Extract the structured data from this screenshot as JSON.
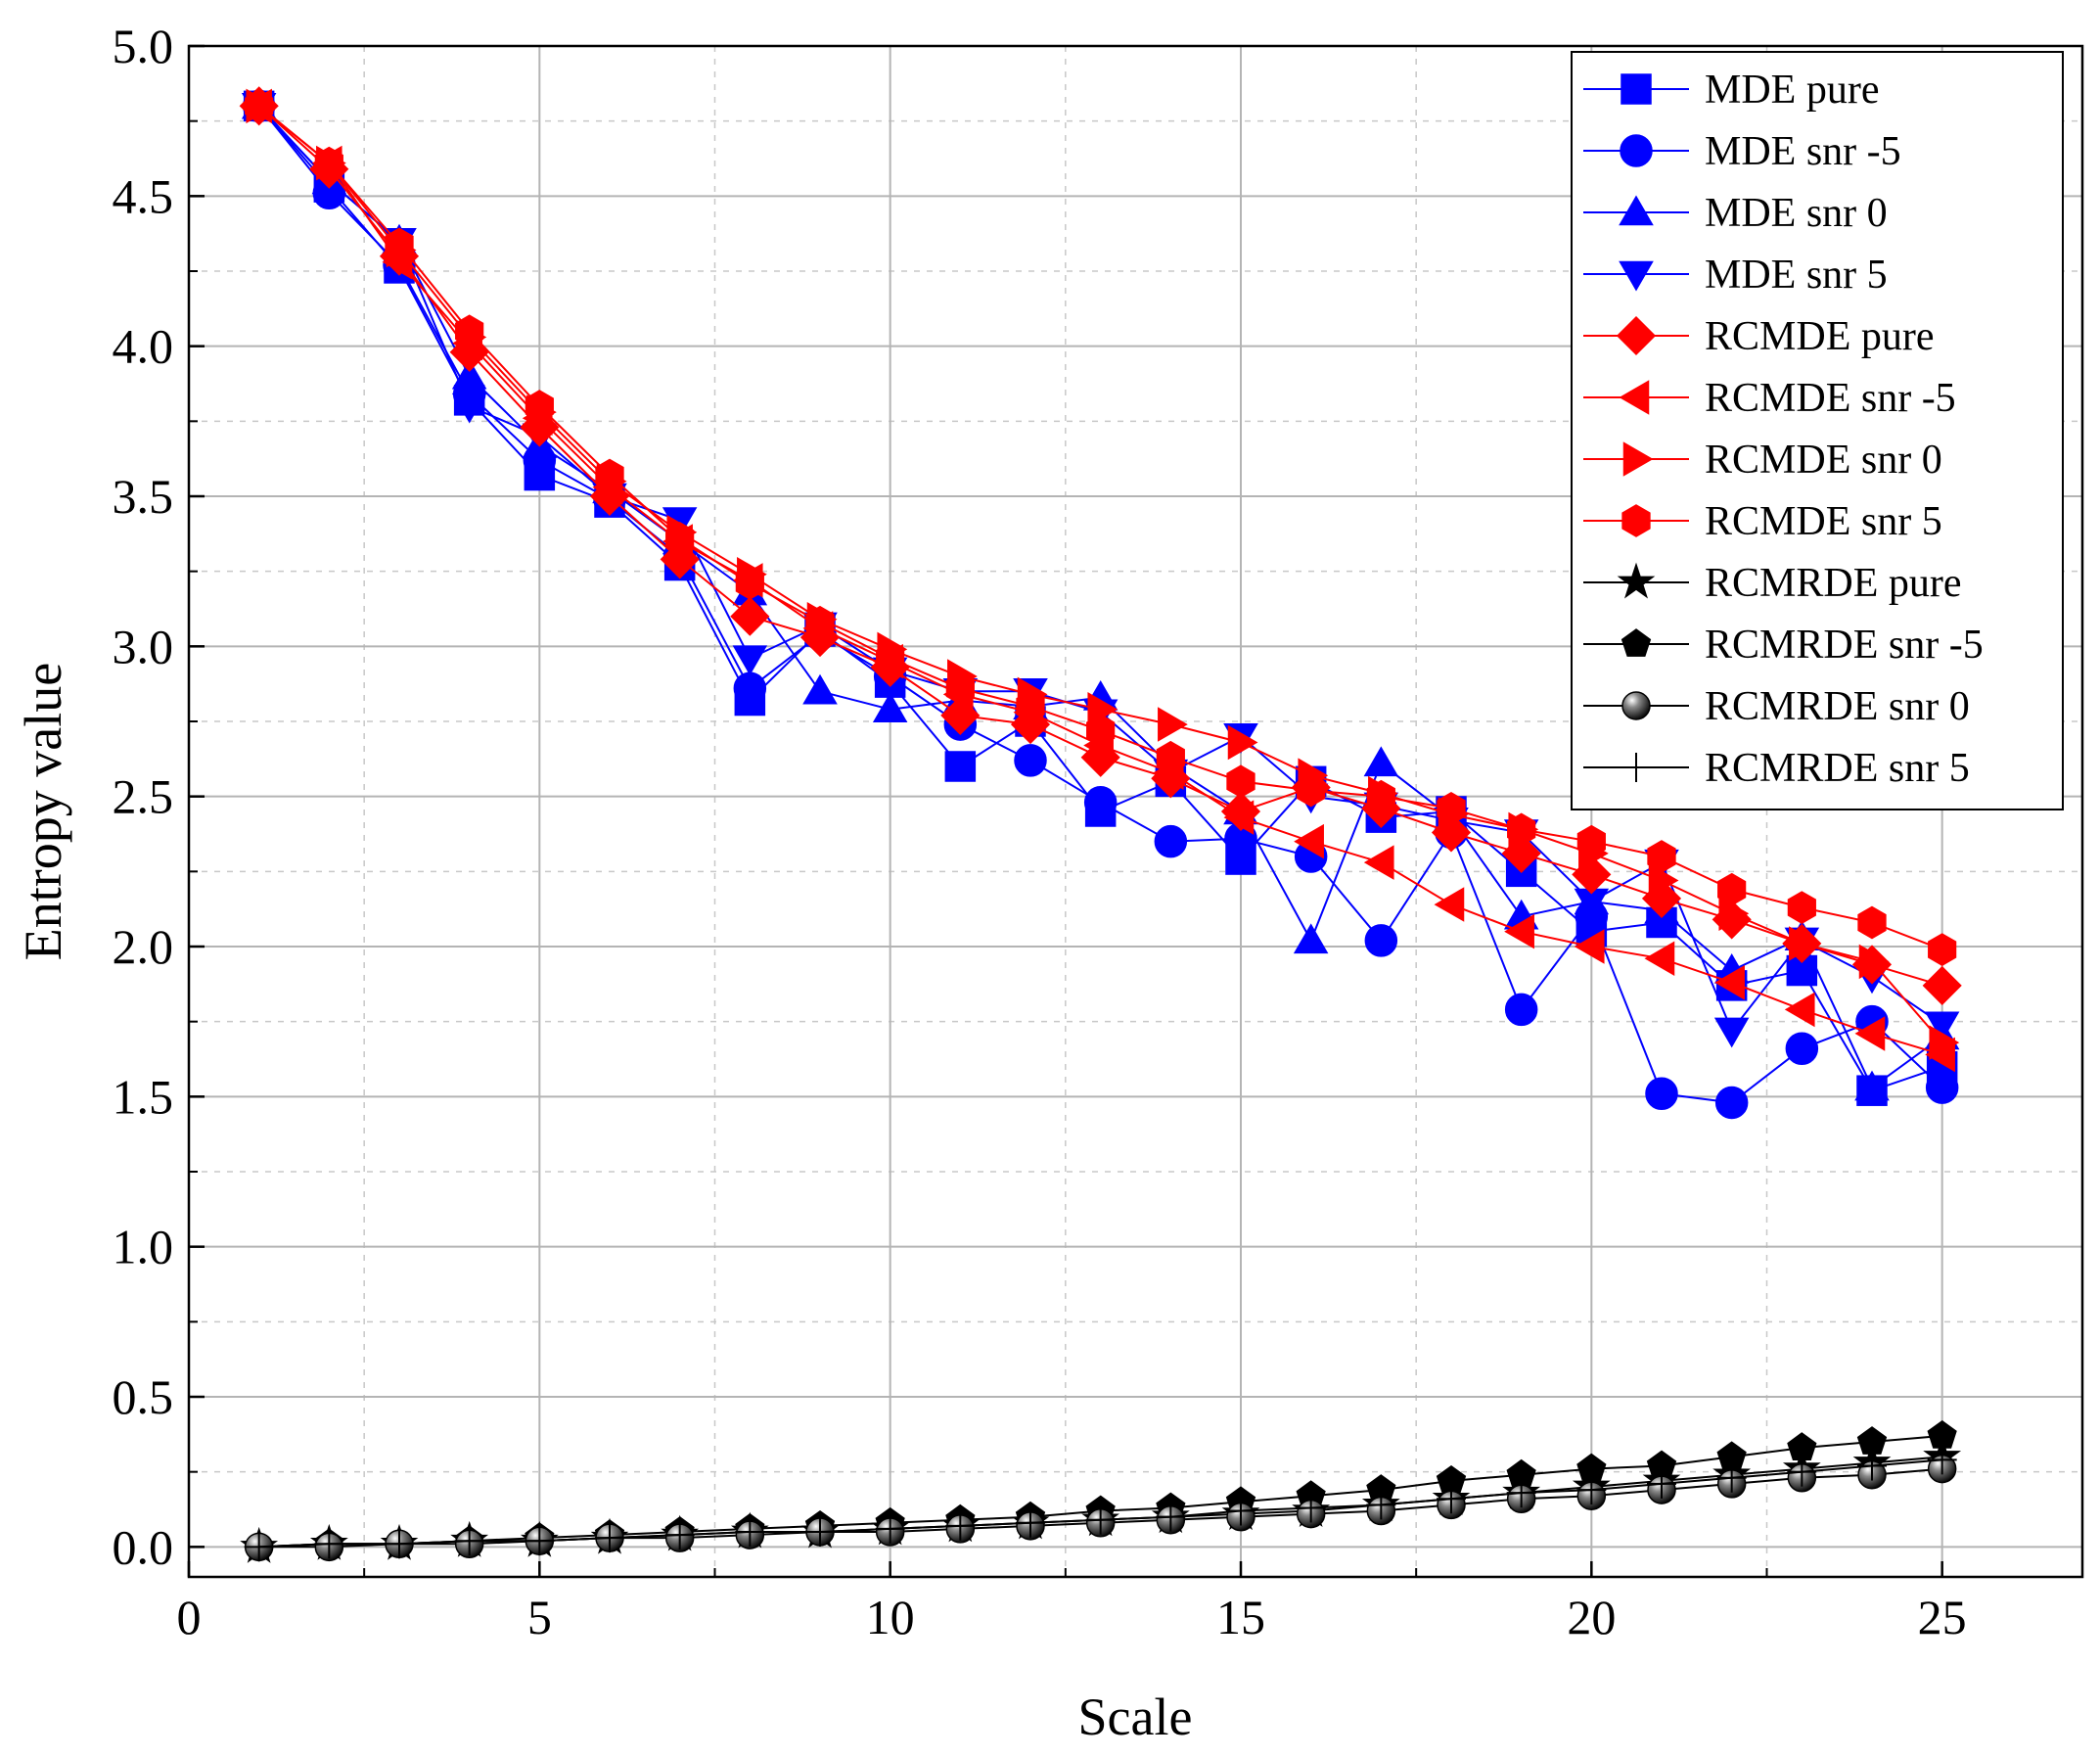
{
  "chart_data": {
    "type": "line",
    "title": "",
    "xlabel": "Scale",
    "ylabel": "Entropy value",
    "xlim": [
      0,
      27
    ],
    "ylim": [
      -0.1,
      5.0
    ],
    "xticks": [
      0,
      5,
      10,
      15,
      20,
      25
    ],
    "yticks": [
      0.0,
      0.5,
      1.0,
      1.5,
      2.0,
      2.5,
      3.0,
      3.5,
      4.0,
      4.5,
      5.0
    ],
    "xtick_labels": [
      "0",
      "5",
      "10",
      "15",
      "20",
      "25"
    ],
    "ytick_labels": [
      "0.0",
      "0.5",
      "1.0",
      "1.5",
      "2.0",
      "2.5",
      "3.0",
      "3.5",
      "4.0",
      "4.5",
      "5.0"
    ],
    "grid": true,
    "legend_position": "top-right",
    "x": [
      1,
      2,
      3,
      4,
      5,
      6,
      7,
      8,
      9,
      10,
      11,
      12,
      13,
      14,
      15,
      16,
      17,
      18,
      19,
      20,
      21,
      22,
      23,
      24,
      25
    ],
    "series": [
      {
        "name": "MDE pure",
        "color": "#0000ff",
        "marker": "square",
        "values": [
          4.8,
          4.53,
          4.26,
          3.82,
          3.57,
          3.48,
          3.27,
          2.82,
          3.05,
          2.88,
          2.6,
          2.75,
          2.45,
          2.55,
          2.29,
          2.55,
          2.43,
          2.45,
          2.25,
          2.05,
          2.08,
          1.87,
          1.92,
          1.52,
          1.6
        ]
      },
      {
        "name": "MDE snr -5",
        "color": "#0000ff",
        "marker": "circle",
        "values": [
          4.8,
          4.51,
          4.27,
          3.84,
          3.62,
          3.49,
          3.3,
          2.86,
          3.04,
          2.9,
          2.74,
          2.62,
          2.48,
          2.35,
          2.36,
          2.3,
          2.02,
          2.38,
          1.79,
          2.1,
          1.51,
          1.48,
          1.66,
          1.75,
          1.53
        ]
      },
      {
        "name": "MDE snr 0",
        "color": "#0000ff",
        "marker": "triangle-up",
        "values": [
          4.8,
          4.55,
          4.35,
          3.9,
          3.67,
          3.52,
          3.35,
          3.18,
          2.85,
          2.79,
          2.82,
          2.8,
          2.83,
          2.6,
          2.45,
          2.02,
          2.61,
          2.43,
          2.1,
          2.15,
          2.12,
          1.92,
          2.03,
          1.53,
          1.7
        ]
      },
      {
        "name": "MDE snr 5",
        "color": "#0000ff",
        "marker": "triangle-down",
        "values": [
          4.8,
          4.55,
          4.35,
          3.8,
          3.7,
          3.5,
          3.42,
          2.96,
          3.07,
          2.92,
          2.85,
          2.85,
          2.78,
          2.58,
          2.7,
          2.5,
          2.47,
          2.42,
          2.38,
          2.15,
          2.28,
          1.72,
          2.02,
          1.9,
          1.74
        ]
      },
      {
        "name": "RCMDE pure",
        "color": "#ff0000",
        "marker": "diamond",
        "values": [
          4.8,
          4.59,
          4.3,
          3.98,
          3.73,
          3.5,
          3.29,
          3.1,
          3.03,
          2.93,
          2.77,
          2.74,
          2.63,
          2.56,
          2.45,
          2.53,
          2.46,
          2.38,
          2.31,
          2.24,
          2.16,
          2.09,
          2.01,
          1.94,
          1.87
        ]
      },
      {
        "name": "RCMDE snr -5",
        "color": "#ff0000",
        "marker": "triangle-left",
        "values": [
          4.8,
          4.61,
          4.28,
          4.01,
          3.76,
          3.53,
          3.35,
          3.22,
          3.06,
          2.95,
          2.84,
          2.78,
          2.67,
          2.58,
          2.43,
          2.35,
          2.28,
          2.14,
          2.05,
          2.0,
          1.96,
          1.88,
          1.79,
          1.71,
          1.64
        ]
      },
      {
        "name": "RCMDE snr 0",
        "color": "#ff0000",
        "marker": "triangle-right",
        "values": [
          4.8,
          4.61,
          4.32,
          4.03,
          3.78,
          3.55,
          3.38,
          3.24,
          3.09,
          2.99,
          2.9,
          2.84,
          2.79,
          2.74,
          2.68,
          2.57,
          2.51,
          2.44,
          2.39,
          2.31,
          2.22,
          2.11,
          2.01,
          1.95,
          1.68
        ]
      },
      {
        "name": "RCMDE snr 5",
        "color": "#ff0000",
        "marker": "hexagon",
        "values": [
          4.8,
          4.61,
          4.34,
          4.05,
          3.8,
          3.57,
          3.36,
          3.21,
          3.08,
          2.96,
          2.86,
          2.8,
          2.72,
          2.63,
          2.55,
          2.52,
          2.5,
          2.46,
          2.39,
          2.35,
          2.3,
          2.19,
          2.13,
          2.08,
          1.99
        ]
      },
      {
        "name": "RCMRDE pure",
        "color": "#000000",
        "marker": "star",
        "values": [
          0.0,
          0.01,
          0.01,
          0.02,
          0.02,
          0.03,
          0.04,
          0.05,
          0.05,
          0.06,
          0.07,
          0.08,
          0.09,
          0.1,
          0.11,
          0.12,
          0.14,
          0.16,
          0.18,
          0.2,
          0.22,
          0.24,
          0.26,
          0.28,
          0.3
        ]
      },
      {
        "name": "RCMRDE snr -5",
        "color": "#000000",
        "marker": "pentagon",
        "values": [
          0.0,
          0.01,
          0.01,
          0.02,
          0.03,
          0.04,
          0.05,
          0.06,
          0.07,
          0.08,
          0.09,
          0.1,
          0.12,
          0.13,
          0.15,
          0.17,
          0.19,
          0.22,
          0.24,
          0.26,
          0.27,
          0.3,
          0.33,
          0.35,
          0.37
        ]
      },
      {
        "name": "RCMRDE snr 0",
        "color": "#000000",
        "marker": "sphere",
        "values": [
          0.0,
          0.0,
          0.01,
          0.01,
          0.02,
          0.03,
          0.03,
          0.04,
          0.05,
          0.05,
          0.06,
          0.07,
          0.08,
          0.09,
          0.1,
          0.11,
          0.12,
          0.14,
          0.16,
          0.17,
          0.19,
          0.21,
          0.23,
          0.24,
          0.26
        ]
      },
      {
        "name": "RCMRDE snr 5",
        "color": "#000000",
        "marker": "plus",
        "values": [
          0.0,
          0.01,
          0.01,
          0.02,
          0.02,
          0.03,
          0.04,
          0.05,
          0.05,
          0.06,
          0.07,
          0.08,
          0.09,
          0.1,
          0.12,
          0.13,
          0.14,
          0.16,
          0.18,
          0.19,
          0.21,
          0.23,
          0.25,
          0.27,
          0.29
        ]
      }
    ]
  }
}
